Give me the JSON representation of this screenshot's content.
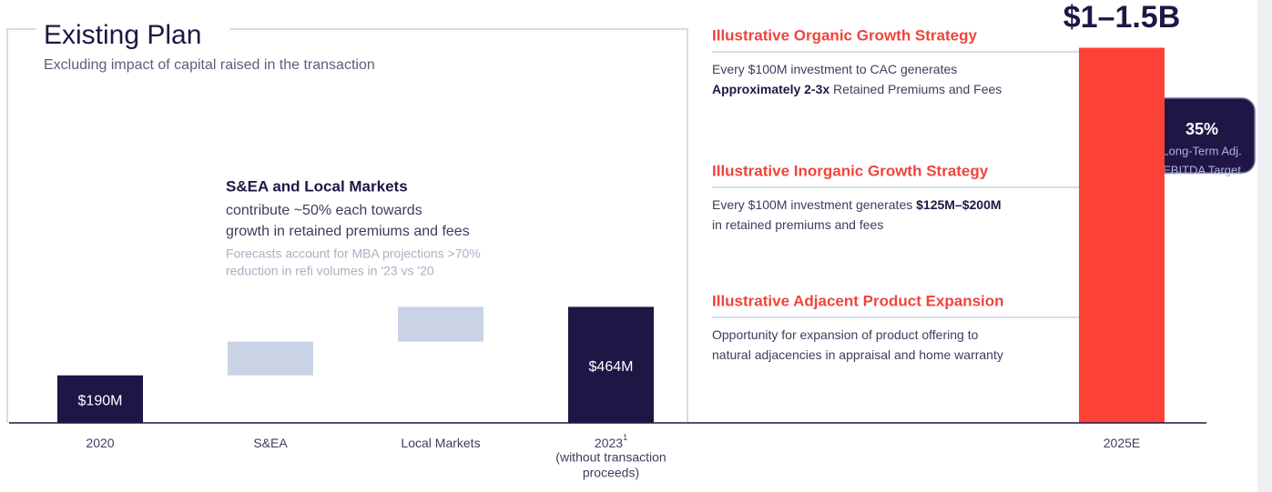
{
  "chart_data": {
    "type": "waterfall",
    "title": "Existing Plan",
    "subtitle": "Excluding impact of capital raised in the transaction",
    "categories": [
      "2020",
      "S&EA",
      "Local Markets",
      "2023",
      "2025E"
    ],
    "category_footnote": {
      "index": 3,
      "mark": "1",
      "notes": [
        "(without transaction",
        "proceeds)"
      ]
    },
    "values": [
      190,
      135,
      139,
      464,
      1500
    ],
    "measures": [
      "absolute",
      "relative",
      "relative",
      "total",
      "absolute"
    ],
    "value_labels": [
      "$190M",
      null,
      null,
      "$464M",
      null
    ],
    "colors": [
      "#1f1646",
      "#c9d3e5",
      "#c9d3e5",
      "#1f1646",
      "#ff4236"
    ],
    "ylim": [
      0,
      1600
    ],
    "headline": "$1–1.5B",
    "annotation": {
      "title": "S&EA and Local Markets",
      "lines": [
        "contribute ~50% each towards",
        "growth in retained premiums and fees"
      ],
      "notes": [
        "Forecasts account for MBA projections >70%",
        "reduction in refi volumes in '23 vs '20"
      ]
    },
    "strategies": [
      {
        "title": "Illustrative Organic Growth Strategy",
        "lines": [
          [
            {
              "text": "Every $100M investment to CAC generates",
              "bold": false
            }
          ],
          [
            {
              "text": "Approximately 2-3x",
              "bold": true
            },
            {
              "text": " Retained Premiums and Fees",
              "bold": false
            }
          ]
        ]
      },
      {
        "title": "Illustrative Inorganic Growth Strategy",
        "lines": [
          [
            {
              "text": "Every $100M investment generates ",
              "bold": false
            },
            {
              "text": "$125M–$200M",
              "bold": true
            }
          ],
          [
            {
              "text": "in retained premiums and fees",
              "bold": false
            }
          ]
        ]
      },
      {
        "title": "Illustrative Adjacent Product Expansion",
        "lines": [
          [
            {
              "text": "Opportunity for expansion of product offering to",
              "bold": false
            }
          ],
          [
            {
              "text": "natural adjacencies in appraisal and home warranty",
              "bold": false
            }
          ]
        ]
      }
    ],
    "badge": {
      "value": "35%",
      "lines": [
        "Long-Term Adj.",
        "EBITDA Target"
      ]
    }
  }
}
